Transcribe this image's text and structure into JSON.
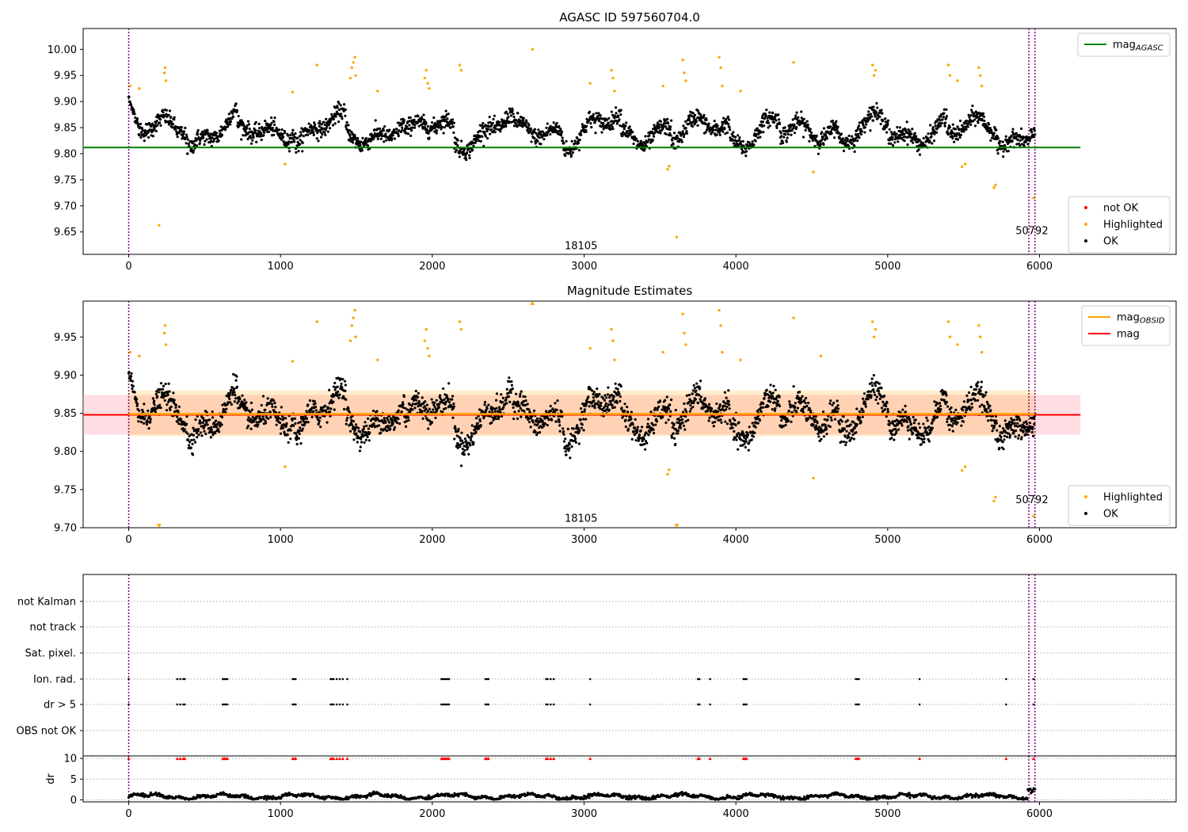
{
  "chart_data": [
    {
      "type": "scatter",
      "title": "AGASC ID 597560704.0",
      "xlabel": "",
      "ylabel": "",
      "xlim": [
        -300,
        6900
      ],
      "ylim": [
        9.607,
        10.04
      ],
      "xticks": [
        0,
        1000,
        2000,
        3000,
        4000,
        5000,
        6000
      ],
      "xtick_labels": [
        "0",
        "1000",
        "2000",
        "3000",
        "4000",
        "5000",
        "6000"
      ],
      "yticks": [
        9.65,
        9.7,
        9.75,
        9.8,
        9.85,
        9.9,
        9.95,
        10.0
      ],
      "ytick_labels": [
        "9.65",
        "9.70",
        "9.75",
        "9.80",
        "9.85",
        "9.90",
        "9.95",
        "10.00"
      ],
      "vlines": [
        0,
        5930,
        5970
      ],
      "hline": {
        "name": "mag_AGASC",
        "y": 9.812,
        "xmin": -300,
        "xmax": 6270,
        "color": "#008000"
      },
      "annotations": [
        {
          "text": "18105",
          "x": 2980,
          "y": 9.617
        },
        {
          "text": "50792",
          "x": 5950,
          "y": 9.646
        }
      ],
      "series": [
        {
          "name": "OK",
          "color": "#000000",
          "baseline": 9.845,
          "noise": 0.022,
          "points": 2600
        },
        {
          "name": "Highlighted",
          "color": "#ffa500",
          "points": [
            [
              10,
              9.93
            ],
            [
              70,
              9.925
            ],
            [
              200,
              9.663
            ],
            [
              235,
              9.955
            ],
            [
              240,
              9.965
            ],
            [
              245,
              9.94
            ],
            [
              1030,
              9.78
            ],
            [
              1080,
              9.918
            ],
            [
              1240,
              9.97
            ],
            [
              1460,
              9.945
            ],
            [
              1470,
              9.965
            ],
            [
              1480,
              9.975
            ],
            [
              1490,
              9.985
            ],
            [
              1495,
              9.95
            ],
            [
              1640,
              9.92
            ],
            [
              1950,
              9.945
            ],
            [
              1960,
              9.96
            ],
            [
              1970,
              9.935
            ],
            [
              1980,
              9.925
            ],
            [
              2180,
              9.97
            ],
            [
              2190,
              9.96
            ],
            [
              2660,
              10.0
            ],
            [
              3040,
              9.935
            ],
            [
              3180,
              9.96
            ],
            [
              3190,
              9.945
            ],
            [
              3200,
              9.92
            ],
            [
              3520,
              9.93
            ],
            [
              3550,
              9.77
            ],
            [
              3560,
              9.776
            ],
            [
              3610,
              9.64
            ],
            [
              3650,
              9.98
            ],
            [
              3660,
              9.955
            ],
            [
              3670,
              9.94
            ],
            [
              3890,
              9.985
            ],
            [
              3900,
              9.965
            ],
            [
              3910,
              9.93
            ],
            [
              4030,
              9.92
            ],
            [
              4380,
              9.975
            ],
            [
              4510,
              9.765
            ],
            [
              4900,
              9.97
            ],
            [
              4910,
              9.95
            ],
            [
              4920,
              9.96
            ],
            [
              5400,
              9.97
            ],
            [
              5410,
              9.95
            ],
            [
              5460,
              9.94
            ],
            [
              5490,
              9.775
            ],
            [
              5510,
              9.78
            ],
            [
              5600,
              9.965
            ],
            [
              5610,
              9.95
            ],
            [
              5620,
              9.93
            ],
            [
              5700,
              9.735
            ],
            [
              5710,
              9.74
            ],
            [
              5960,
              9.715
            ]
          ]
        },
        {
          "name": "not OK",
          "color": "#ff0000",
          "points": []
        }
      ],
      "legend": [
        {
          "label": "mag",
          "sub": "AGASC",
          "color": "#008000",
          "kind": "line",
          "position": "top-right"
        },
        {
          "label": "not OK",
          "color": "#ff0000",
          "kind": "dot",
          "position": "bottom-right"
        },
        {
          "label": "Highlighted",
          "color": "#ffa500",
          "kind": "dot",
          "position": "bottom-right"
        },
        {
          "label": "OK",
          "color": "#000000",
          "kind": "dot",
          "position": "bottom-right"
        }
      ]
    },
    {
      "type": "scatter",
      "title": "Magnitude Estimates",
      "xlabel": "",
      "ylabel": "",
      "xlim": [
        -300,
        6900
      ],
      "ylim": [
        9.7,
        9.997
      ],
      "xticks": [
        0,
        1000,
        2000,
        3000,
        4000,
        5000,
        6000
      ],
      "xtick_labels": [
        "0",
        "1000",
        "2000",
        "3000",
        "4000",
        "5000",
        "6000"
      ],
      "yticks": [
        9.7,
        9.75,
        9.8,
        9.85,
        9.9,
        9.95
      ],
      "ytick_labels": [
        "9.70",
        "9.75",
        "9.80",
        "9.85",
        "9.90",
        "9.95"
      ],
      "vlines": [
        0,
        5930,
        5970
      ],
      "mag_line": {
        "name": "mag",
        "y": 9.848,
        "band": [
          9.822,
          9.874
        ],
        "xmin": -300,
        "xmax": 6270,
        "color": "#ff0000"
      },
      "mag_obsid_line": {
        "name": "mag_OBSID",
        "y": 9.849,
        "band": [
          9.82,
          9.88
        ],
        "xmin": 0,
        "xmax": 5970,
        "color": "#ffa500"
      },
      "annotations": [
        {
          "text": "18105",
          "x": 2980,
          "y": 9.708
        },
        {
          "text": "50792",
          "x": 5950,
          "y": 9.732
        }
      ],
      "series": [
        {
          "name": "OK",
          "color": "#000000",
          "baseline": 9.848,
          "noise": 0.022,
          "points": 2600
        },
        {
          "name": "Highlighted",
          "color": "#ffa500",
          "points": [
            [
              10,
              9.93
            ],
            [
              70,
              9.925
            ],
            [
              235,
              9.955
            ],
            [
              240,
              9.965
            ],
            [
              245,
              9.94
            ],
            [
              1030,
              9.78
            ],
            [
              1080,
              9.918
            ],
            [
              1240,
              9.97
            ],
            [
              1460,
              9.945
            ],
            [
              1470,
              9.965
            ],
            [
              1480,
              9.975
            ],
            [
              1490,
              9.985
            ],
            [
              1495,
              9.95
            ],
            [
              1640,
              9.92
            ],
            [
              1950,
              9.945
            ],
            [
              1960,
              9.96
            ],
            [
              1970,
              9.935
            ],
            [
              1980,
              9.925
            ],
            [
              2180,
              9.97
            ],
            [
              2190,
              9.96
            ],
            [
              3040,
              9.935
            ],
            [
              3180,
              9.96
            ],
            [
              3190,
              9.945
            ],
            [
              3200,
              9.92
            ],
            [
              3520,
              9.93
            ],
            [
              3550,
              9.77
            ],
            [
              3560,
              9.776
            ],
            [
              3650,
              9.98
            ],
            [
              3660,
              9.955
            ],
            [
              3670,
              9.94
            ],
            [
              3890,
              9.985
            ],
            [
              3900,
              9.965
            ],
            [
              3910,
              9.93
            ],
            [
              4030,
              9.92
            ],
            [
              4380,
              9.975
            ],
            [
              4510,
              9.765
            ],
            [
              4560,
              9.925
            ],
            [
              4900,
              9.97
            ],
            [
              4910,
              9.95
            ],
            [
              4920,
              9.96
            ],
            [
              5400,
              9.97
            ],
            [
              5410,
              9.95
            ],
            [
              5460,
              9.94
            ],
            [
              5490,
              9.775
            ],
            [
              5510,
              9.78
            ],
            [
              5600,
              9.965
            ],
            [
              5610,
              9.95
            ],
            [
              5620,
              9.93
            ],
            [
              5700,
              9.735
            ],
            [
              5710,
              9.74
            ],
            [
              5960,
              9.715
            ]
          ]
        },
        {
          "name": "out-of-range markers",
          "color": "#ffa500",
          "points": [
            [
              200,
              9.702
            ],
            [
              2660,
              9.995
            ],
            [
              3610,
              9.702
            ]
          ]
        }
      ],
      "legend": [
        {
          "label": "mag",
          "sub": "OBSID",
          "color": "#ffa500",
          "kind": "line",
          "position": "top-right"
        },
        {
          "label": "mag",
          "color": "#ff0000",
          "kind": "line",
          "position": "top-right"
        },
        {
          "label": "Highlighted",
          "color": "#ffa500",
          "kind": "dot",
          "position": "bottom-right"
        },
        {
          "label": "OK",
          "color": "#000000",
          "kind": "dot",
          "position": "bottom-right"
        }
      ]
    },
    {
      "type": "scatter",
      "title": "",
      "xlabel": "",
      "ylabel": "",
      "xlim": [
        -300,
        6900
      ],
      "categories": [
        "not Kalman",
        "not track",
        "Sat. pixel.",
        "Ion. rad.",
        "dr > 5",
        "OBS not OK"
      ],
      "vlines": [
        0,
        5930,
        5970
      ],
      "series": [
        {
          "name": "Ion. rad.",
          "color": "#000000",
          "x": [
            0,
            320,
            340,
            360,
            370,
            620,
            630,
            640,
            650,
            1080,
            1090,
            1100,
            1330,
            1340,
            1350,
            1370,
            1390,
            1410,
            1440,
            2060,
            2070,
            2080,
            2090,
            2100,
            2110,
            2350,
            2360,
            2370,
            2750,
            2760,
            2780,
            2800,
            3040,
            3750,
            3760,
            3830,
            4050,
            4060,
            4070,
            4790,
            4800,
            4810,
            5210,
            5780,
            5960
          ]
        },
        {
          "name": "dr > 5",
          "color": "#000000",
          "x": [
            0,
            320,
            340,
            360,
            370,
            620,
            630,
            640,
            650,
            1080,
            1090,
            1100,
            1330,
            1340,
            1350,
            1370,
            1390,
            1410,
            1440,
            2060,
            2070,
            2080,
            2090,
            2100,
            2110,
            2350,
            2360,
            2370,
            2750,
            2760,
            2780,
            2800,
            3040,
            3750,
            3760,
            3830,
            4050,
            4060,
            4070,
            4790,
            4800,
            4810,
            5210,
            5780,
            5960
          ]
        }
      ]
    },
    {
      "type": "scatter",
      "title": "",
      "xlabel": "",
      "ylabel": "dr",
      "xlim": [
        -300,
        6900
      ],
      "ylim": [
        -0.5,
        10.6
      ],
      "xticks": [
        0,
        1000,
        2000,
        3000,
        4000,
        5000,
        6000
      ],
      "xtick_labels": [
        "0",
        "1000",
        "2000",
        "3000",
        "4000",
        "5000",
        "6000"
      ],
      "yticks": [
        0,
        5,
        10
      ],
      "ytick_labels": [
        "0",
        "5",
        "10"
      ],
      "vlines": [
        0,
        5930,
        5970
      ],
      "series": [
        {
          "name": "dr",
          "color": "#000000",
          "baseline": 0.8,
          "points": 1400
        },
        {
          "name": "dr > 10 markers",
          "color": "#ff0000",
          "y": 10,
          "x": [
            0,
            320,
            340,
            360,
            370,
            620,
            630,
            640,
            650,
            1080,
            1090,
            1100,
            1330,
            1340,
            1350,
            1370,
            1390,
            1410,
            1440,
            2060,
            2070,
            2080,
            2090,
            2100,
            2110,
            2350,
            2360,
            2370,
            2750,
            2760,
            2780,
            2800,
            3040,
            3750,
            3760,
            3830,
            4050,
            4060,
            4070,
            4790,
            4800,
            4810,
            5210,
            5780,
            5960
          ]
        }
      ]
    }
  ]
}
